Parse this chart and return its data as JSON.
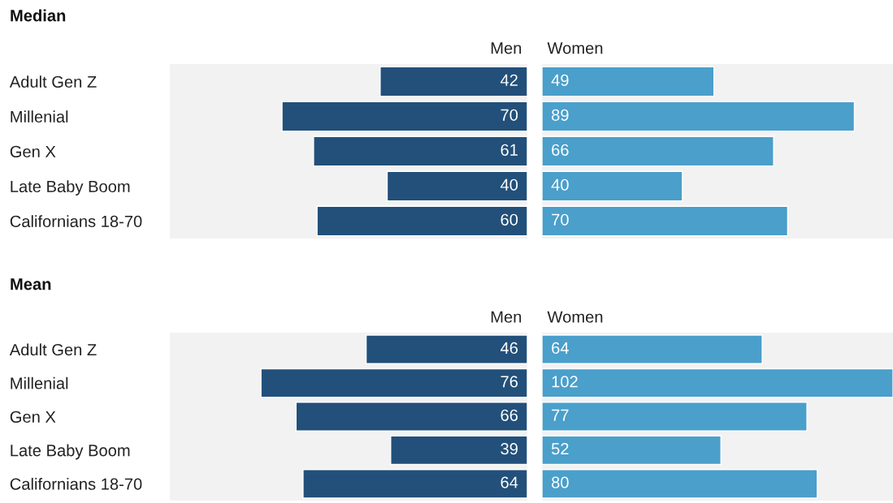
{
  "chart_data": [
    {
      "type": "bar",
      "orientation": "horizontal",
      "title": "Median",
      "subtitle": "Men",
      "categories": [
        "Adult Gen Z",
        "Millenial",
        "Gen X",
        "Late Baby Boom",
        "Californians 18-70"
      ],
      "values": [
        42,
        70,
        61,
        40,
        60
      ],
      "color": "#22507a",
      "xlim": [
        102,
        0
      ],
      "data_labels": true,
      "tick_labels": "y",
      "grid": false,
      "legend": false
    },
    {
      "type": "bar",
      "orientation": "horizontal",
      "subtitle": "Women",
      "categories": [
        null,
        null,
        null,
        null,
        null
      ],
      "values": [
        49,
        89,
        66,
        40,
        70
      ],
      "color": "#4a9fcb",
      "xlim": [
        0,
        100
      ],
      "data_labels": true,
      "tick_labels": false,
      "grid": false,
      "legend": false
    },
    {
      "type": "bar",
      "orientation": "horizontal",
      "title": "Mean",
      "subtitle": "Men",
      "categories": [
        "Adult Gen Z",
        "Millenial",
        "Gen X",
        "Late Baby Boom",
        "Californians 18-70"
      ],
      "values": [
        46,
        76,
        66,
        39,
        64
      ],
      "color": "#22507a",
      "xlim": [
        102,
        0
      ],
      "data_labels": true,
      "tick_labels": "y",
      "grid": false,
      "legend": false
    },
    {
      "type": "bar",
      "orientation": "horizontal",
      "subtitle": "Women",
      "categories": [
        null,
        null,
        null,
        null,
        null
      ],
      "values": [
        64,
        102,
        77,
        52,
        80
      ],
      "color": "#4a9fcb",
      "xlim": [
        0,
        102
      ],
      "data_labels": true,
      "tick_labels": false,
      "grid": false,
      "legend": false
    }
  ]
}
